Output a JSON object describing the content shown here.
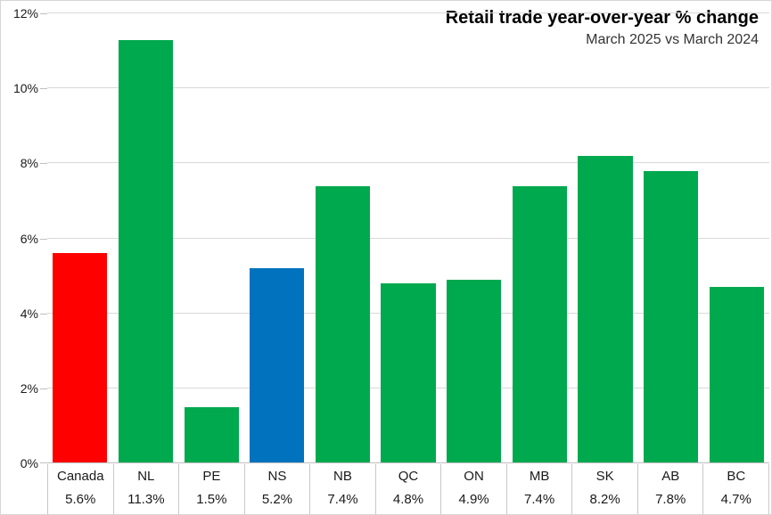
{
  "chart_data": {
    "type": "bar",
    "title": "Retail trade year-over-year % change",
    "subtitle": "March 2025 vs March 2024",
    "categories": [
      "Canada",
      "NL",
      "PE",
      "NS",
      "NB",
      "QC",
      "ON",
      "MB",
      "SK",
      "AB",
      "BC"
    ],
    "values": [
      5.6,
      11.3,
      1.5,
      5.2,
      7.4,
      4.8,
      4.9,
      7.4,
      8.2,
      7.8,
      4.7
    ],
    "value_labels": [
      "5.6%",
      "11.3%",
      "1.5%",
      "5.2%",
      "7.4%",
      "4.8%",
      "4.9%",
      "7.4%",
      "8.2%",
      "7.8%",
      "4.7%"
    ],
    "bar_colors": [
      "#ff0000",
      "#00a94e",
      "#00a94e",
      "#0072be",
      "#00a94e",
      "#00a94e",
      "#00a94e",
      "#00a94e",
      "#00a94e",
      "#00a94e",
      "#00a94e"
    ],
    "accent_colors": {
      "canada": "#ff0000",
      "nova_scotia": "#0072be",
      "other_provinces": "#00a94e"
    },
    "ylabel": "",
    "xlabel": "",
    "ylim": [
      0,
      12
    ],
    "ytick_step": 2,
    "ytick_labels": [
      "0%",
      "2%",
      "4%",
      "6%",
      "8%",
      "10%",
      "12%"
    ],
    "grid": true,
    "legend": false,
    "gridline_color": "#d9d9d9",
    "axis_color": "#bfbfbf"
  }
}
